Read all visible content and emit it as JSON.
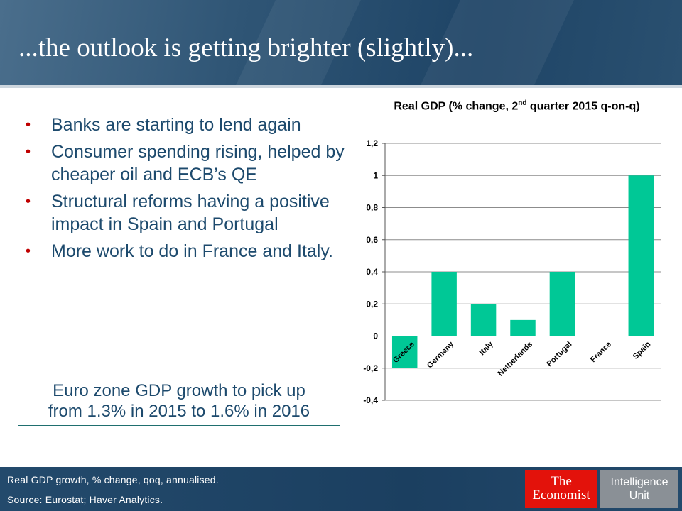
{
  "header": {
    "title": "...the outlook is getting brighter (slightly)..."
  },
  "bullets": [
    "Banks are starting to lend again",
    "Consumer spending rising, helped by cheaper oil and ECB’s QE",
    "Structural reforms having a positive impact in Spain and Portugal",
    "More work to do in France and Italy."
  ],
  "callout": {
    "line1": "Euro zone GDP growth to pick up",
    "line2": "from 1.3% in 2015 to 1.6% in 2016"
  },
  "chart_title": {
    "part1": "Real GDP (% change, 2",
    "superscript": "nd",
    "part2": " quarter 2015 q-on-q)"
  },
  "chart_data": {
    "type": "bar",
    "title": "Real GDP (% change, 2nd quarter 2015 q-on-q)",
    "categories": [
      "Greece",
      "Germany",
      "Italy",
      "Netherlands",
      "Portugal",
      "France",
      "Spain"
    ],
    "values": [
      -0.2,
      0.4,
      0.2,
      0.1,
      0.4,
      0.0,
      1.0
    ],
    "ylim": [
      -0.4,
      1.2
    ],
    "yticks": [
      -0.4,
      -0.2,
      0,
      0.2,
      0.4,
      0.6,
      0.8,
      1,
      1.2
    ],
    "ytick_labels": [
      "-0,4",
      "-0,2",
      "0",
      "0,2",
      "0,4",
      "0,6",
      "0,8",
      "1",
      "1,2"
    ],
    "grid": true,
    "bar_color": "#00c896"
  },
  "footer": {
    "note": "Real GDP growth, % change, qoq,  annualised.",
    "source": "Source: Eurostat; Haver Analytics."
  },
  "logo": {
    "the": "The",
    "economist": "Economist",
    "unit_line1": "Intelligence",
    "unit_line2": "Unit",
    "red": "#e3120b"
  }
}
